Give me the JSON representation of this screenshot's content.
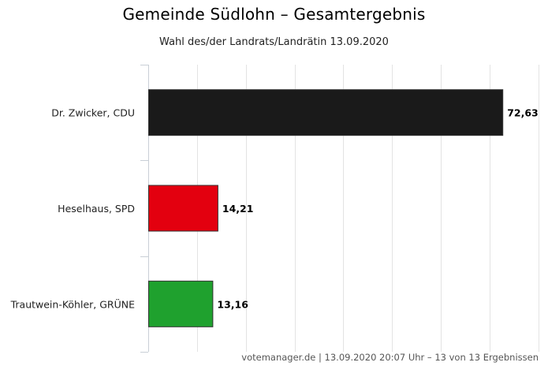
{
  "chart_data": {
    "type": "bar",
    "orientation": "horizontal",
    "title": "Gemeinde Südlohn – Gesamtergebnis",
    "subtitle": "Wahl des/der Landrats/Landrätin 13.09.2020",
    "categories": [
      "Dr. Zwicker, CDU",
      "Heselhaus, SPD",
      "Trautwein-Köhler, GRÜNE"
    ],
    "values": [
      72.63,
      14.21,
      13.16
    ],
    "value_labels": [
      "72,63",
      "14,21",
      "13,16"
    ],
    "colors": [
      "#1a1a1a",
      "#e3000f",
      "#1fa12e"
    ],
    "xlabel": "",
    "ylabel": "",
    "xlim": [
      0,
      80
    ],
    "grid": true,
    "legend": "none",
    "credit": "votemanager.de | 13.09.2020 20:07 Uhr – 13 von 13 Ergebnissen"
  }
}
